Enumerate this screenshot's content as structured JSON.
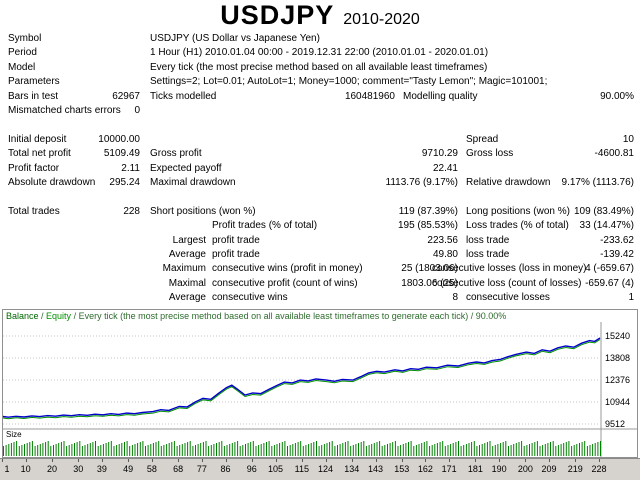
{
  "title": {
    "symbol": "USDJPY",
    "range": "2010-2020"
  },
  "report": {
    "rows": [
      [
        {
          "t": "Symbol",
          "c": "l1"
        },
        {
          "t": "USDJPY (US Dollar vs Japanese Yen)",
          "c": "l2"
        }
      ],
      [
        {
          "t": "Period",
          "c": "l1"
        },
        {
          "t": "1 Hour (H1) 2010.01.04 00:00 - 2019.12.31 22:00 (2010.01.01 - 2020.01.01)",
          "c": "l2"
        }
      ],
      [
        {
          "t": "Model",
          "c": "l1"
        },
        {
          "t": "Every tick (the most precise method based on all available least timeframes)",
          "c": "l2"
        }
      ],
      [
        {
          "t": "Parameters",
          "c": "l1"
        },
        {
          "t": "Settings=2; Lot=0.01; AutoLot=1; Money=1000; comment=\"Tasty Lemon\"; Magic=101001;",
          "c": "l2"
        }
      ],
      [
        {
          "t": "Bars in test",
          "c": "l1"
        },
        {
          "t": "62967",
          "c": "v1"
        },
        {
          "t": "Ticks modelled",
          "c": "l2"
        },
        {
          "t": "160481960",
          "c": "v2t"
        },
        {
          "t": "Modelling quality",
          "c": "l3t"
        },
        {
          "t": "90.00%",
          "c": "v3"
        }
      ],
      [
        {
          "t": "Mismatched charts errors",
          "c": "l1"
        },
        {
          "t": "0",
          "c": "v1"
        }
      ],
      [],
      [
        {
          "t": "Initial deposit",
          "c": "l1"
        },
        {
          "t": "10000.00",
          "c": "v1"
        },
        {
          "t": "Spread",
          "c": "l3"
        },
        {
          "t": "10",
          "c": "v3"
        }
      ],
      [
        {
          "t": "Total net profit",
          "c": "l1"
        },
        {
          "t": "5109.49",
          "c": "v1"
        },
        {
          "t": "Gross profit",
          "c": "l2"
        },
        {
          "t": "9710.29",
          "c": "v2"
        },
        {
          "t": "Gross loss",
          "c": "l3"
        },
        {
          "t": "-4600.81",
          "c": "v3"
        }
      ],
      [
        {
          "t": "Profit factor",
          "c": "l1"
        },
        {
          "t": "2.11",
          "c": "v1"
        },
        {
          "t": "Expected payoff",
          "c": "l2"
        },
        {
          "t": "22.41",
          "c": "v2"
        }
      ],
      [
        {
          "t": "Absolute drawdown",
          "c": "l1"
        },
        {
          "t": "295.24",
          "c": "v1"
        },
        {
          "t": "Maximal drawdown",
          "c": "l2"
        },
        {
          "t": "1113.76 (9.17%)",
          "c": "v2"
        },
        {
          "t": "Relative drawdown",
          "c": "l3"
        },
        {
          "t": "9.17% (1113.76)",
          "c": "v3"
        }
      ],
      [],
      [
        {
          "t": "Total trades",
          "c": "l1"
        },
        {
          "t": "228",
          "c": "v1"
        },
        {
          "t": "Short positions (won %)",
          "c": "l2"
        },
        {
          "t": "119 (87.39%)",
          "c": "v2"
        },
        {
          "t": "Long positions (won %)",
          "c": "l3"
        },
        {
          "t": "109 (83.49%)",
          "c": "v3"
        }
      ],
      [
        {
          "t": "Profit trades (% of total)",
          "c": "b"
        },
        {
          "t": "195 (85.53%)",
          "c": "v2"
        },
        {
          "t": "Loss trades (% of total)",
          "c": "l3"
        },
        {
          "t": "33 (14.47%)",
          "c": "v3"
        }
      ],
      [
        {
          "t": "Largest",
          "c": "a"
        },
        {
          "t": "profit trade",
          "c": "b"
        },
        {
          "t": "223.56",
          "c": "v2"
        },
        {
          "t": "loss trade",
          "c": "l3"
        },
        {
          "t": "-233.62",
          "c": "v3"
        }
      ],
      [
        {
          "t": "Average",
          "c": "a"
        },
        {
          "t": "profit trade",
          "c": "b"
        },
        {
          "t": "49.80",
          "c": "v2"
        },
        {
          "t": "loss trade",
          "c": "l3"
        },
        {
          "t": "-139.42",
          "c": "v3"
        }
      ],
      [
        {
          "t": "Maximum",
          "c": "a"
        },
        {
          "t": "consecutive wins (profit in money)",
          "c": "b"
        },
        {
          "t": "25 (1803.06)",
          "c": "v2"
        },
        {
          "t": "consecutive losses (loss in money)",
          "c": "l3w"
        },
        {
          "t": "4 (-659.67)",
          "c": "v3w"
        }
      ],
      [
        {
          "t": "Maximal",
          "c": "a"
        },
        {
          "t": "consecutive profit (count of wins)",
          "c": "b"
        },
        {
          "t": "1803.06 (25)",
          "c": "v2"
        },
        {
          "t": "consecutive loss (count of losses)",
          "c": "l3w"
        },
        {
          "t": "-659.67 (4)",
          "c": "v3w"
        }
      ],
      [
        {
          "t": "Average",
          "c": "a"
        },
        {
          "t": "consecutive wins",
          "c": "b"
        },
        {
          "t": "8",
          "c": "v2"
        },
        {
          "t": "consecutive losses",
          "c": "l3"
        },
        {
          "t": "1",
          "c": "v3"
        }
      ]
    ]
  },
  "chart_data": {
    "type": "line",
    "title": "Balance / Equity curve",
    "header": {
      "balance": "Balance",
      "sep": " / ",
      "equity": "Equity",
      "rest": " / Every tick (the most precise method based on all available least timeframes to generate each tick) / 90.00%"
    },
    "size_label": "Size",
    "legend": [
      "Balance",
      "Equity"
    ],
    "y_ticks": [
      15240,
      13808,
      12376,
      10944,
      9512
    ],
    "x_ticks": [
      1,
      10,
      20,
      30,
      39,
      49,
      58,
      68,
      77,
      86,
      96,
      105,
      115,
      124,
      134,
      143,
      153,
      162,
      171,
      181,
      190,
      200,
      209,
      219,
      228
    ],
    "x_max": 228,
    "ylim": [
      9512,
      15240
    ],
    "balance_color": "#0000c8",
    "equity_color": "#009000",
    "size_color": "#008000",
    "series": [
      {
        "name": "Balance",
        "points": [
          [
            1,
            10000
          ],
          [
            3,
            9955
          ],
          [
            6,
            10015
          ],
          [
            9,
            9970
          ],
          [
            12,
            10040
          ],
          [
            15,
            9995
          ],
          [
            18,
            10060
          ],
          [
            21,
            10020
          ],
          [
            24,
            10090
          ],
          [
            27,
            10050
          ],
          [
            30,
            10120
          ],
          [
            33,
            10080
          ],
          [
            36,
            10150
          ],
          [
            39,
            10110
          ],
          [
            42,
            10180
          ],
          [
            45,
            10140
          ],
          [
            48,
            10220
          ],
          [
            51,
            10180
          ],
          [
            54,
            10260
          ],
          [
            58,
            10320
          ],
          [
            61,
            10440
          ],
          [
            64,
            10400
          ],
          [
            68,
            10660
          ],
          [
            71,
            10620
          ],
          [
            74,
            10940
          ],
          [
            77,
            11180
          ],
          [
            80,
            11120
          ],
          [
            83,
            11520
          ],
          [
            86,
            11880
          ],
          [
            88,
            12040
          ],
          [
            90,
            11790
          ],
          [
            93,
            11400
          ],
          [
            96,
            11530
          ],
          [
            99,
            11490
          ],
          [
            102,
            11760
          ],
          [
            105,
            12010
          ],
          [
            108,
            12240
          ],
          [
            111,
            12190
          ],
          [
            114,
            12370
          ],
          [
            117,
            12320
          ],
          [
            120,
            12440
          ],
          [
            124,
            12370
          ],
          [
            127,
            12290
          ],
          [
            130,
            12410
          ],
          [
            134,
            12370
          ],
          [
            137,
            12590
          ],
          [
            140,
            12840
          ],
          [
            143,
            12940
          ],
          [
            146,
            12890
          ],
          [
            150,
            13040
          ],
          [
            153,
            12970
          ],
          [
            156,
            13110
          ],
          [
            159,
            13070
          ],
          [
            162,
            13210
          ],
          [
            166,
            13170
          ],
          [
            170,
            13340
          ],
          [
            174,
            13290
          ],
          [
            178,
            13470
          ],
          [
            181,
            13550
          ],
          [
            184,
            13490
          ],
          [
            187,
            13640
          ],
          [
            190,
            13710
          ],
          [
            193,
            13890
          ],
          [
            196,
            14040
          ],
          [
            200,
            14190
          ],
          [
            203,
            14110
          ],
          [
            206,
            14340
          ],
          [
            209,
            14250
          ],
          [
            212,
            14470
          ],
          [
            215,
            14590
          ],
          [
            218,
            14510
          ],
          [
            221,
            14770
          ],
          [
            224,
            14940
          ],
          [
            226,
            14890
          ],
          [
            228,
            15109.49
          ]
        ]
      }
    ],
    "size_bars": {
      "count": 228,
      "min_h": 10,
      "max_h": 15
    }
  }
}
